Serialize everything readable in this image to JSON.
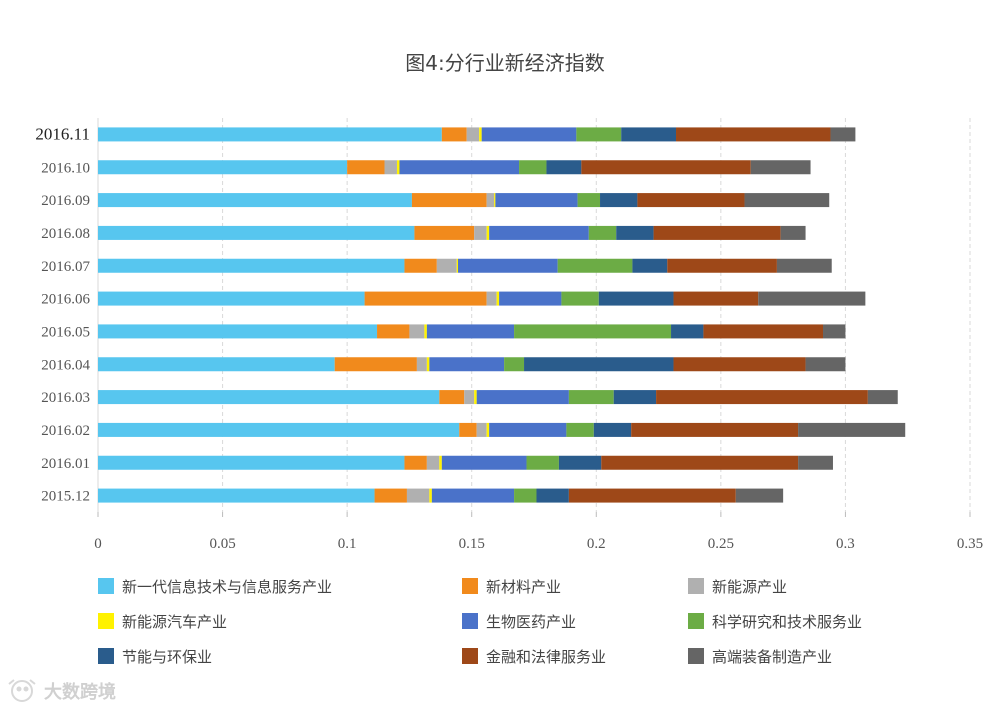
{
  "chart_data": {
    "type": "bar",
    "orientation": "horizontal",
    "stacked": true,
    "title": "图4:分行业新经济指数",
    "xlabel": "",
    "ylabel": "",
    "xlim": [
      0,
      0.35
    ],
    "x_ticks": [
      0,
      0.05,
      0.1,
      0.15,
      0.2,
      0.25,
      0.3,
      0.35
    ],
    "x_tick_labels": [
      "0",
      "0.05",
      "0.1",
      "0.15",
      "0.2",
      "0.25",
      "0.3",
      "0.35"
    ],
    "grid": true,
    "legend_position": "bottom",
    "categories": [
      "2016.11",
      "2016.10",
      "2016.09",
      "2016.08",
      "2016.07",
      "2016.06",
      "2016.05",
      "2016.04",
      "2016.03",
      "2016.02",
      "2016.01",
      "2015.12"
    ],
    "emphasized_category": "2016.11",
    "series": [
      {
        "name": "新一代信息技术与信息服务产业",
        "color": "#57c6ef",
        "values": [
          0.138,
          0.1,
          0.126,
          0.127,
          0.123,
          0.107,
          0.112,
          0.095,
          0.137,
          0.145,
          0.123,
          0.111
        ]
      },
      {
        "name": "新材料产业",
        "color": "#f18a1c",
        "values": [
          0.01,
          0.015,
          0.03,
          0.024,
          0.013,
          0.049,
          0.013,
          0.033,
          0.01,
          0.007,
          0.009,
          0.013
        ]
      },
      {
        "name": "新能源产业",
        "color": "#b0b0b0",
        "values": [
          0.005,
          0.005,
          0.003,
          0.005,
          0.008,
          0.004,
          0.006,
          0.004,
          0.004,
          0.004,
          0.005,
          0.009
        ]
      },
      {
        "name": "新能源汽车产业",
        "color": "#fff200",
        "values": [
          0.001,
          0.001,
          0.0005,
          0.001,
          0.0005,
          0.001,
          0.001,
          0.001,
          0.001,
          0.001,
          0.001,
          0.001
        ]
      },
      {
        "name": "生物医药产业",
        "color": "#4a72c9",
        "values": [
          0.038,
          0.048,
          0.033,
          0.04,
          0.04,
          0.025,
          0.035,
          0.03,
          0.037,
          0.031,
          0.034,
          0.033
        ]
      },
      {
        "name": "科学研究和技术服务业",
        "color": "#6cac45",
        "values": [
          0.018,
          0.011,
          0.009,
          0.011,
          0.03,
          0.015,
          0.063,
          0.008,
          0.018,
          0.011,
          0.013,
          0.009
        ]
      },
      {
        "name": "节能与环保业",
        "color": "#2a5c8c",
        "values": [
          0.022,
          0.014,
          0.015,
          0.015,
          0.014,
          0.03,
          0.013,
          0.06,
          0.017,
          0.015,
          0.017,
          0.013
        ]
      },
      {
        "name": "金融和法律服务业",
        "color": "#9e4818",
        "values": [
          0.062,
          0.068,
          0.043,
          0.051,
          0.044,
          0.034,
          0.048,
          0.053,
          0.085,
          0.067,
          0.079,
          0.067
        ]
      },
      {
        "name": "高端装备制造产业",
        "color": "#656565",
        "values": [
          0.01,
          0.024,
          0.034,
          0.01,
          0.022,
          0.043,
          0.009,
          0.016,
          0.012,
          0.043,
          0.014,
          0.019
        ]
      }
    ]
  },
  "watermark": {
    "text": "大数跨境",
    "icon": "owl-logo-icon"
  }
}
